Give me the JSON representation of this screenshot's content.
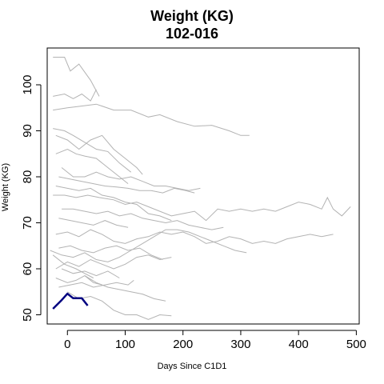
{
  "chart_data": {
    "type": "line",
    "title": "Weight (KG)",
    "subtitle": "102-016",
    "xlabel": "Days Since C1D1",
    "ylabel": "Weight (KG)",
    "xlim": [
      -35,
      505
    ],
    "ylim": [
      48,
      108
    ],
    "xticks": [
      0,
      100,
      200,
      300,
      400,
      500
    ],
    "yticks": [
      50,
      60,
      70,
      80,
      90,
      100
    ],
    "grid": false,
    "legend": "none",
    "colors": {
      "background": "#ffffff",
      "others": "#b3b3b3",
      "highlight": "#000080",
      "axis": "#000000"
    },
    "highlight": {
      "name": "102-016",
      "x": [
        -25,
        -10,
        0,
        10,
        25,
        35
      ],
      "y": [
        51.3,
        53.2,
        54.6,
        53.6,
        53.6,
        52.0
      ]
    },
    "series": [
      {
        "x": [
          -25,
          -5,
          5,
          20,
          40,
          55
        ],
        "y": [
          106.0,
          106.0,
          103.0,
          104.5,
          101.0,
          97.5
        ]
      },
      {
        "x": [
          -25,
          -5,
          10,
          25,
          40,
          50
        ],
        "y": [
          97.5,
          98.0,
          97.0,
          98.0,
          96.5,
          99.0
        ]
      },
      {
        "x": [
          -25,
          0,
          20,
          50,
          80,
          110,
          140,
          160,
          190,
          220,
          250,
          280,
          300,
          315
        ],
        "y": [
          94.5,
          95.0,
          95.3,
          95.8,
          94.5,
          94.5,
          93.0,
          93.5,
          92.0,
          91.0,
          91.2,
          90.0,
          89.0,
          89.0
        ]
      },
      {
        "x": [
          -25,
          -5,
          10,
          30,
          50,
          70,
          90,
          110
        ],
        "y": [
          90.5,
          90.0,
          89.0,
          87.5,
          86.0,
          85.5,
          83.0,
          81.0
        ]
      },
      {
        "x": [
          -20,
          0,
          20,
          40,
          60,
          80,
          100,
          120,
          130
        ],
        "y": [
          89.0,
          88.0,
          86.0,
          88.0,
          89.0,
          86.0,
          84.0,
          82.0,
          80.5
        ]
      },
      {
        "x": [
          -20,
          0,
          15,
          30,
          50,
          70,
          90,
          105
        ],
        "y": [
          85.0,
          86.0,
          85.0,
          84.5,
          84.0,
          82.0,
          80.0,
          78.5
        ]
      },
      {
        "x": [
          -10,
          10,
          30,
          50,
          70,
          90,
          110,
          130,
          150,
          170,
          190,
          210,
          230
        ],
        "y": [
          82.0,
          80.0,
          80.0,
          81.0,
          80.0,
          79.5,
          80.0,
          79.0,
          78.0,
          78.0,
          77.5,
          77.0,
          77.5
        ]
      },
      {
        "x": [
          -15,
          5,
          25,
          45,
          65,
          85,
          105,
          125,
          145,
          165,
          185,
          205,
          220
        ],
        "y": [
          80.0,
          79.5,
          79.0,
          78.5,
          78.0,
          77.8,
          77.5,
          77.0,
          77.0,
          76.5,
          77.5,
          77.0,
          76.5
        ]
      },
      {
        "x": [
          -25,
          -5,
          15,
          35,
          55,
          80,
          100,
          120,
          140,
          160,
          180,
          200,
          220,
          240,
          260,
          280,
          300,
          320,
          340,
          360,
          380,
          400,
          420,
          440,
          450,
          460,
          475,
          490
        ],
        "y": [
          76.0,
          76.0,
          75.5,
          76.0,
          75.5,
          75.0,
          74.0,
          74.5,
          73.5,
          72.5,
          71.5,
          72.0,
          72.5,
          70.5,
          73.0,
          72.5,
          73.0,
          72.5,
          73.0,
          72.5,
          73.5,
          74.5,
          74.0,
          73.0,
          75.5,
          73.0,
          71.5,
          73.5
        ]
      },
      {
        "x": [
          -20,
          0,
          20,
          40,
          60,
          80,
          100,
          120,
          140,
          160,
          180
        ],
        "y": [
          78.0,
          77.5,
          77.0,
          77.5,
          76.0,
          75.5,
          74.5,
          74.0,
          72.0,
          71.5,
          70.5
        ]
      },
      {
        "x": [
          -10,
          10,
          30,
          50,
          70,
          90,
          110,
          130,
          150,
          170,
          190,
          210,
          230,
          250,
          270
        ],
        "y": [
          73.0,
          73.0,
          72.5,
          72.0,
          72.5,
          71.5,
          72.0,
          71.0,
          70.5,
          70.0,
          70.5,
          69.5,
          69.0,
          68.5,
          69.0
        ]
      },
      {
        "x": [
          -15,
          5,
          25,
          45,
          65,
          85,
          105
        ],
        "y": [
          71.0,
          70.5,
          70.0,
          69.5,
          70.5,
          69.5,
          69.0
        ]
      },
      {
        "x": [
          -20,
          0,
          20,
          40,
          60,
          80,
          100,
          120,
          140,
          160,
          180,
          200,
          220,
          240,
          260,
          280,
          300,
          320,
          340,
          360,
          380,
          400,
          420,
          440,
          460
        ],
        "y": [
          67.5,
          68.0,
          67.0,
          68.5,
          67.5,
          66.0,
          65.5,
          66.5,
          67.0,
          68.0,
          67.5,
          68.0,
          67.0,
          65.5,
          66.0,
          67.0,
          66.5,
          65.5,
          66.0,
          65.5,
          66.5,
          67.0,
          67.5,
          67.0,
          67.5
        ]
      },
      {
        "x": [
          -30,
          -10,
          10,
          30,
          50,
          70,
          90,
          110,
          130,
          150,
          170,
          190,
          210,
          230,
          250,
          270,
          290,
          310
        ],
        "y": [
          64.0,
          63.0,
          62.5,
          63.5,
          62.0,
          61.5,
          62.5,
          64.0,
          65.5,
          67.0,
          68.5,
          68.5,
          68.0,
          67.0,
          66.0,
          65.0,
          64.0,
          63.5
        ]
      },
      {
        "x": [
          -15,
          5,
          25,
          45,
          65,
          85,
          105,
          125,
          145,
          165
        ],
        "y": [
          64.5,
          65.0,
          64.0,
          63.5,
          64.5,
          65.0,
          64.0,
          64.5,
          63.0,
          62.0
        ]
      },
      {
        "x": [
          -20,
          0,
          20,
          40,
          60,
          80,
          100,
          120,
          140,
          160,
          180
        ],
        "y": [
          60.0,
          61.5,
          60.5,
          62.0,
          61.0,
          60.0,
          61.0,
          62.5,
          63.0,
          62.0,
          62.5
        ]
      },
      {
        "x": [
          -20,
          0,
          15,
          30,
          45,
          60
        ],
        "y": [
          58.0,
          57.0,
          57.5,
          58.5,
          57.0,
          56.5
        ]
      },
      {
        "x": [
          -15,
          5,
          25,
          45,
          65,
          85,
          105,
          115
        ],
        "y": [
          56.0,
          56.5,
          57.0,
          56.0,
          56.5,
          57.0,
          56.5,
          57.5
        ]
      },
      {
        "x": [
          -10,
          10,
          30,
          50,
          70,
          90
        ],
        "y": [
          60.0,
          59.0,
          59.5,
          58.5,
          59.5,
          58.0
        ]
      },
      {
        "x": [
          -25,
          -5,
          15,
          30,
          45
        ],
        "y": [
          63.0,
          61.0,
          60.0,
          59.0,
          58.0
        ]
      },
      {
        "x": [
          0,
          20,
          40,
          60,
          80,
          100,
          120,
          140,
          160,
          180
        ],
        "y": [
          55.0,
          53.5,
          54.0,
          53.0,
          51.0,
          50.0,
          50.0,
          49.0,
          50.0,
          49.8
        ]
      },
      {
        "x": [
          30,
          50,
          70,
          90,
          110,
          130,
          150,
          170
        ],
        "y": [
          58.5,
          57.0,
          56.0,
          55.5,
          55.0,
          54.5,
          53.5,
          53.0
        ]
      }
    ]
  }
}
